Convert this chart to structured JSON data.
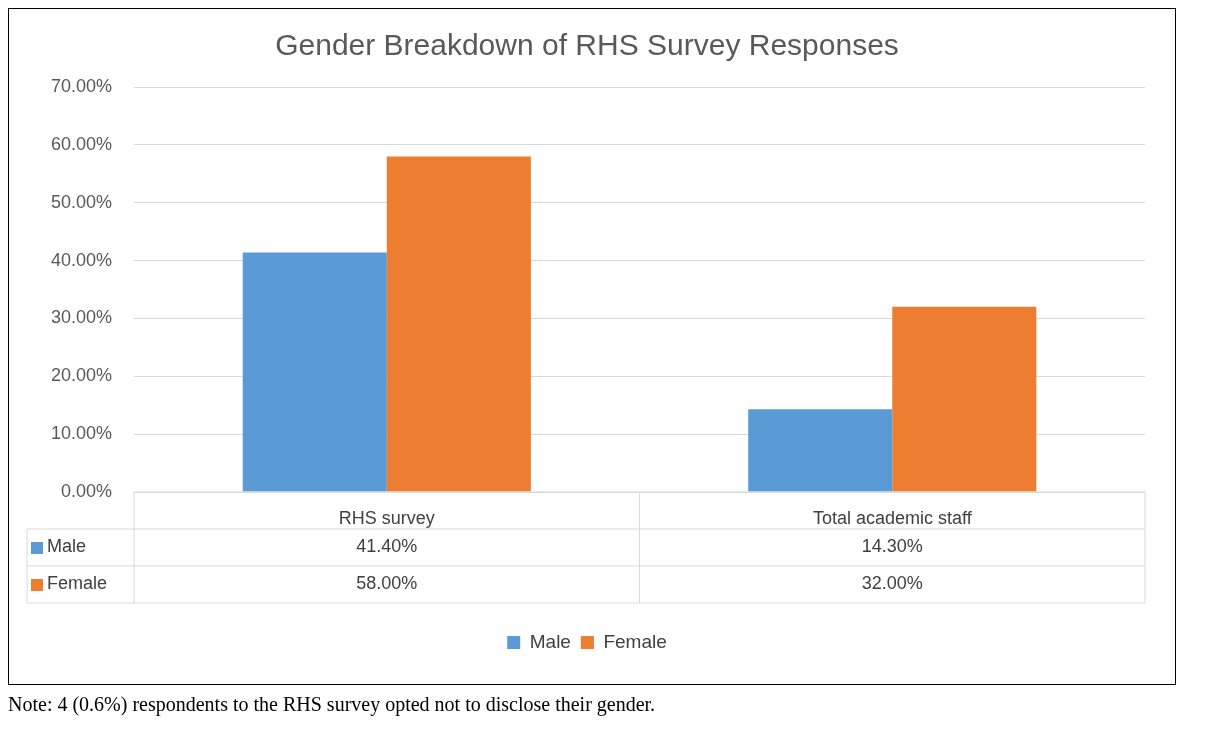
{
  "chart_data": {
    "type": "bar",
    "title": "Gender Breakdown of RHS Survey Responses",
    "categories": [
      "RHS survey",
      "Total academic staff"
    ],
    "series": [
      {
        "name": "Male",
        "color": "#5b9bd5",
        "values": [
          41.4,
          14.3
        ],
        "value_labels": [
          "41.40%",
          "14.30%"
        ]
      },
      {
        "name": "Female",
        "color": "#ed7d31",
        "values": [
          58,
          32
        ],
        "value_labels": [
          "58.00%",
          "32.00%"
        ]
      }
    ],
    "ylim": [
      0,
      70
    ],
    "yticks": [
      {
        "value": 0,
        "label": "0.00%"
      },
      {
        "value": 10,
        "label": "10.00%"
      },
      {
        "value": 20,
        "label": "20.00%"
      },
      {
        "value": 30,
        "label": "30.00%"
      },
      {
        "value": 40,
        "label": "40.00%"
      },
      {
        "value": 50,
        "label": "50.00%"
      },
      {
        "value": 60,
        "label": "60.00%"
      },
      {
        "value": 70,
        "label": "70.00%"
      }
    ],
    "grid": "y",
    "legend": "bottom",
    "annotations": [
      "Note: 4 (0.6%) respondents to the RHS survey opted not to disclose their gender."
    ]
  }
}
